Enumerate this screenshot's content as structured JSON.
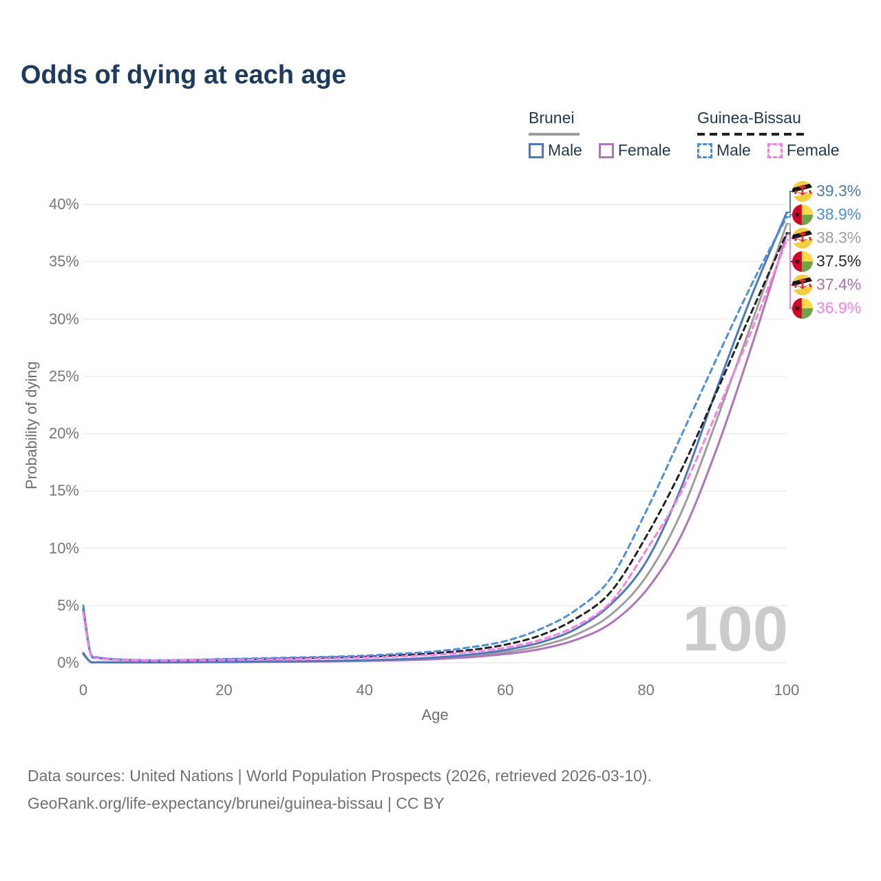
{
  "title": "Odds of dying at each age",
  "legend": {
    "groups": [
      {
        "country": "Brunei",
        "underline_color": "#9e9e9e",
        "underline_dashed": false,
        "items": [
          {
            "label": "Male",
            "color": "#4a7abc",
            "dashed": false
          },
          {
            "label": "Female",
            "color": "#b173bb",
            "dashed": false
          }
        ]
      },
      {
        "country": "Guinea-Bissau",
        "underline_color": "#1f1f1f",
        "underline_dashed": true,
        "items": [
          {
            "label": "Male",
            "color": "#4a90e2",
            "dashed": true
          },
          {
            "label": "Female",
            "color": "#ff7de2",
            "dashed": true
          }
        ]
      }
    ]
  },
  "chart_data": {
    "type": "line",
    "title": "Odds of dying at each age",
    "xlabel": "Age",
    "ylabel": "Probability of dying",
    "xlim": [
      0,
      100
    ],
    "ylim": [
      0,
      40
    ],
    "xticks": [
      0,
      20,
      40,
      60,
      80,
      100
    ],
    "yticks": [
      0,
      5,
      10,
      15,
      20,
      25,
      30,
      35,
      40
    ],
    "ytick_suffix": "%",
    "grid": "horizontal",
    "age_watermark": "100",
    "x": [
      0,
      1,
      2,
      3,
      5,
      10,
      15,
      20,
      25,
      30,
      35,
      40,
      45,
      50,
      55,
      60,
      65,
      70,
      75,
      80,
      85,
      90,
      95,
      100
    ],
    "series": [
      {
        "name": "Brunei Both sexes",
        "color": "#9e9e9e",
        "dashed": false,
        "values": [
          0.8,
          0.09,
          0.055,
          0.045,
          0.038,
          0.032,
          0.05,
          0.075,
          0.09,
          0.11,
          0.14,
          0.19,
          0.26,
          0.39,
          0.6,
          0.93,
          1.48,
          2.45,
          4.2,
          7.5,
          13.1,
          21.1,
          29.6,
          38.3
        ]
      },
      {
        "name": "Brunei Female",
        "color": "#b173bb",
        "dashed": false,
        "values": [
          0.75,
          0.08,
          0.05,
          0.04,
          0.035,
          0.03,
          0.04,
          0.055,
          0.07,
          0.09,
          0.12,
          0.16,
          0.22,
          0.32,
          0.49,
          0.76,
          1.2,
          2.0,
          3.45,
          6.3,
          11.1,
          18.6,
          27.6,
          37.4
        ]
      },
      {
        "name": "Brunei Male",
        "color": "#4a7abc",
        "dashed": false,
        "values": [
          0.85,
          0.1,
          0.06,
          0.05,
          0.04,
          0.035,
          0.06,
          0.09,
          0.11,
          0.13,
          0.17,
          0.22,
          0.31,
          0.46,
          0.72,
          1.12,
          1.78,
          2.95,
          5.1,
          8.8,
          15.3,
          23.8,
          32.0,
          39.3
        ]
      },
      {
        "name": "Guinea-Bissau Both sexes",
        "color": "#222222",
        "dashed": true,
        "values": [
          4.7,
          0.88,
          0.46,
          0.37,
          0.28,
          0.2,
          0.23,
          0.28,
          0.33,
          0.39,
          0.45,
          0.53,
          0.66,
          0.84,
          1.12,
          1.58,
          2.4,
          3.85,
          6.2,
          11.0,
          16.8,
          23.6,
          30.6,
          37.5
        ]
      },
      {
        "name": "Guinea-Bissau Male",
        "color": "#4a90e2",
        "dashed": true,
        "values": [
          5.0,
          0.95,
          0.5,
          0.4,
          0.3,
          0.22,
          0.26,
          0.33,
          0.39,
          0.46,
          0.53,
          0.63,
          0.79,
          1.0,
          1.35,
          1.9,
          2.95,
          4.6,
          7.4,
          13.2,
          19.8,
          26.5,
          33.0,
          38.9
        ]
      },
      {
        "name": "Guinea-Bissau Female",
        "color": "#ff7de2",
        "dashed": true,
        "values": [
          4.4,
          0.8,
          0.42,
          0.34,
          0.26,
          0.19,
          0.21,
          0.24,
          0.28,
          0.33,
          0.38,
          0.45,
          0.55,
          0.7,
          0.94,
          1.32,
          2.0,
          3.2,
          5.3,
          9.8,
          14.9,
          21.8,
          29.0,
          36.9
        ]
      }
    ],
    "end_labels": [
      {
        "series": "Brunei Male",
        "flag": "brunei",
        "text": "39.3%",
        "value": 39.3,
        "color": "#4a7abc"
      },
      {
        "series": "Guinea-Bissau Male",
        "flag": "guinea-bissau",
        "text": "38.9%",
        "value": 38.9,
        "color": "#4a90e2"
      },
      {
        "series": "Brunei Both sexes",
        "flag": "brunei",
        "text": "38.3%",
        "value": 38.3,
        "color": "#9e9e9e"
      },
      {
        "series": "Guinea-Bissau Both sexes",
        "flag": "guinea-bissau",
        "text": "37.5%",
        "value": 37.5,
        "color": "#2b2b2b"
      },
      {
        "series": "Brunei Female",
        "flag": "brunei",
        "text": "37.4%",
        "value": 37.4,
        "color": "#ab6fb5"
      },
      {
        "series": "Guinea-Bissau Female",
        "flag": "guinea-bissau",
        "text": "36.9%",
        "value": 36.9,
        "color": "#ff7de2"
      }
    ],
    "flag_colors": {
      "brunei_yellow": "#f2cf3c",
      "brunei_white": "#ffffff",
      "brunei_black": "#151515",
      "brunei_red": "#d63027",
      "gb_red": "#d80027",
      "gb_yellow": "#ffda44",
      "gb_green": "#6da544",
      "gb_black": "#111111"
    },
    "grid_color": "#ececec",
    "watermark_color": "#cbcbcb"
  },
  "footer": {
    "line1": "Data sources: United Nations | World Population Prospects (2026, retrieved 2026-03-10).",
    "line2": "GeoRank.org/life-expectancy/brunei/guinea-bissau | CC BY"
  }
}
